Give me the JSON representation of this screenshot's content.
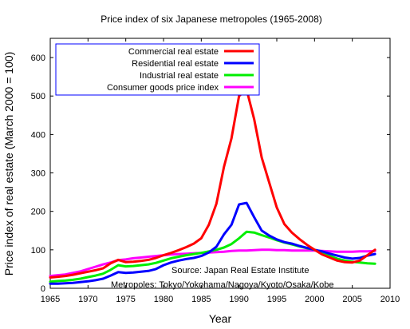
{
  "chart_data": {
    "type": "line",
    "title": "Price index of six Japanese metropoles (1965-2008)",
    "xlabel": "Year",
    "ylabel": "Price index of real estate (March 2000 = 100)",
    "xlim": [
      1965,
      2010
    ],
    "ylim": [
      0,
      650
    ],
    "xticks": [
      1965,
      1970,
      1975,
      1980,
      1985,
      1990,
      1995,
      2000,
      2005,
      2010
    ],
    "yticks": [
      0,
      100,
      200,
      300,
      400,
      500,
      600
    ],
    "grid": false,
    "legend_position": "top-left",
    "series": [
      {
        "name": "Commercial real estate",
        "color": "#ff0000",
        "points": [
          [
            1965,
            28
          ],
          [
            1966,
            30
          ],
          [
            1967,
            32
          ],
          [
            1968,
            35
          ],
          [
            1969,
            39
          ],
          [
            1970,
            43
          ],
          [
            1971,
            47
          ],
          [
            1972,
            52
          ],
          [
            1973,
            65
          ],
          [
            1974,
            74
          ],
          [
            1975,
            68
          ],
          [
            1976,
            69
          ],
          [
            1977,
            71
          ],
          [
            1978,
            74
          ],
          [
            1979,
            79
          ],
          [
            1980,
            86
          ],
          [
            1981,
            92
          ],
          [
            1982,
            99
          ],
          [
            1983,
            107
          ],
          [
            1984,
            116
          ],
          [
            1985,
            130
          ],
          [
            1986,
            165
          ],
          [
            1987,
            220
          ],
          [
            1988,
            315
          ],
          [
            1989,
            390
          ],
          [
            1990,
            500
          ],
          [
            1991,
            517
          ],
          [
            1992,
            440
          ],
          [
            1993,
            340
          ],
          [
            1994,
            275
          ],
          [
            1995,
            210
          ],
          [
            1996,
            167
          ],
          [
            1997,
            145
          ],
          [
            1998,
            128
          ],
          [
            1999,
            113
          ],
          [
            2000,
            100
          ],
          [
            2001,
            88
          ],
          [
            2002,
            80
          ],
          [
            2003,
            72
          ],
          [
            2004,
            68
          ],
          [
            2005,
            67
          ],
          [
            2006,
            72
          ],
          [
            2007,
            86
          ],
          [
            2008,
            100
          ]
        ]
      },
      {
        "name": "Residential real estate",
        "color": "#0000ff",
        "points": [
          [
            1965,
            12
          ],
          [
            1966,
            12
          ],
          [
            1967,
            13
          ],
          [
            1968,
            14
          ],
          [
            1969,
            16
          ],
          [
            1970,
            18
          ],
          [
            1971,
            21
          ],
          [
            1972,
            25
          ],
          [
            1973,
            33
          ],
          [
            1974,
            42
          ],
          [
            1975,
            40
          ],
          [
            1976,
            41
          ],
          [
            1977,
            43
          ],
          [
            1978,
            45
          ],
          [
            1979,
            50
          ],
          [
            1980,
            60
          ],
          [
            1981,
            67
          ],
          [
            1982,
            72
          ],
          [
            1983,
            76
          ],
          [
            1984,
            79
          ],
          [
            1985,
            84
          ],
          [
            1986,
            93
          ],
          [
            1987,
            108
          ],
          [
            1988,
            140
          ],
          [
            1989,
            165
          ],
          [
            1990,
            218
          ],
          [
            1991,
            222
          ],
          [
            1992,
            185
          ],
          [
            1993,
            150
          ],
          [
            1994,
            137
          ],
          [
            1995,
            127
          ],
          [
            1996,
            120
          ],
          [
            1997,
            116
          ],
          [
            1998,
            110
          ],
          [
            1999,
            105
          ],
          [
            2000,
            100
          ],
          [
            2001,
            96
          ],
          [
            2002,
            90
          ],
          [
            2003,
            85
          ],
          [
            2004,
            80
          ],
          [
            2005,
            77
          ],
          [
            2006,
            79
          ],
          [
            2007,
            85
          ],
          [
            2008,
            89
          ]
        ]
      },
      {
        "name": "Industrial real estate",
        "color": "#00ee00",
        "points": [
          [
            1965,
            17
          ],
          [
            1966,
            19
          ],
          [
            1967,
            20
          ],
          [
            1968,
            22
          ],
          [
            1969,
            25
          ],
          [
            1970,
            29
          ],
          [
            1971,
            33
          ],
          [
            1972,
            38
          ],
          [
            1973,
            48
          ],
          [
            1974,
            60
          ],
          [
            1975,
            57
          ],
          [
            1976,
            58
          ],
          [
            1977,
            60
          ],
          [
            1978,
            62
          ],
          [
            1979,
            66
          ],
          [
            1980,
            72
          ],
          [
            1981,
            78
          ],
          [
            1982,
            82
          ],
          [
            1983,
            86
          ],
          [
            1984,
            89
          ],
          [
            1985,
            92
          ],
          [
            1986,
            96
          ],
          [
            1987,
            100
          ],
          [
            1988,
            106
          ],
          [
            1989,
            115
          ],
          [
            1990,
            130
          ],
          [
            1991,
            147
          ],
          [
            1992,
            145
          ],
          [
            1993,
            138
          ],
          [
            1994,
            132
          ],
          [
            1995,
            125
          ],
          [
            1996,
            119
          ],
          [
            1997,
            114
          ],
          [
            1998,
            109
          ],
          [
            1999,
            104
          ],
          [
            2000,
            100
          ],
          [
            2001,
            92
          ],
          [
            2002,
            84
          ],
          [
            2003,
            77
          ],
          [
            2004,
            72
          ],
          [
            2005,
            69
          ],
          [
            2006,
            67
          ],
          [
            2007,
            65
          ],
          [
            2008,
            64
          ]
        ]
      },
      {
        "name": "Consumer goods price index",
        "color": "#ff00ff",
        "points": [
          [
            1965,
            32
          ],
          [
            1966,
            34
          ],
          [
            1967,
            36
          ],
          [
            1968,
            40
          ],
          [
            1969,
            44
          ],
          [
            1970,
            50
          ],
          [
            1971,
            56
          ],
          [
            1972,
            62
          ],
          [
            1973,
            67
          ],
          [
            1974,
            73
          ],
          [
            1975,
            75
          ],
          [
            1976,
            78
          ],
          [
            1977,
            80
          ],
          [
            1978,
            82
          ],
          [
            1979,
            84
          ],
          [
            1980,
            86
          ],
          [
            1981,
            88
          ],
          [
            1982,
            89
          ],
          [
            1983,
            90
          ],
          [
            1984,
            91
          ],
          [
            1985,
            92
          ],
          [
            1986,
            93
          ],
          [
            1987,
            94
          ],
          [
            1988,
            95
          ],
          [
            1989,
            97
          ],
          [
            1990,
            98
          ],
          [
            1991,
            98
          ],
          [
            1992,
            99
          ],
          [
            1993,
            100
          ],
          [
            1994,
            100
          ],
          [
            1995,
            99
          ],
          [
            1996,
            99
          ],
          [
            1997,
            98
          ],
          [
            1998,
            98
          ],
          [
            1999,
            98
          ],
          [
            2000,
            98
          ],
          [
            2001,
            97
          ],
          [
            2002,
            96
          ],
          [
            2003,
            95
          ],
          [
            2004,
            95
          ],
          [
            2005,
            95
          ],
          [
            2006,
            96
          ],
          [
            2007,
            96
          ],
          [
            2008,
            97
          ]
        ]
      }
    ],
    "annotations": [
      "Source: Japan Real Estate Institute",
      "Metropoles: Tokyo/Yokohama/Nagoya/Kyoto/Osaka/Kobe"
    ]
  }
}
